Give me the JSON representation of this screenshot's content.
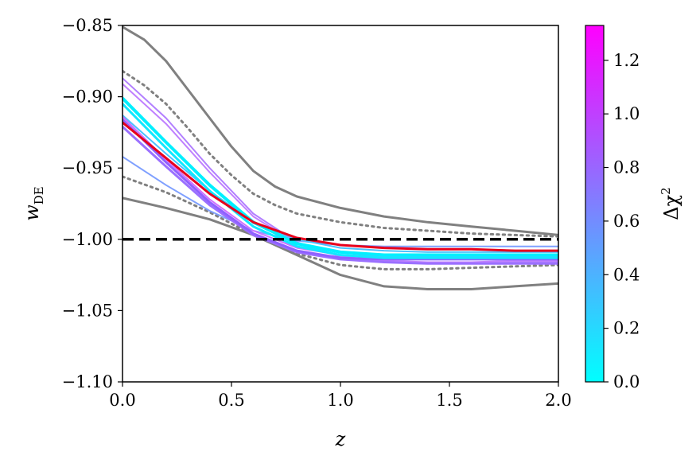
{
  "chart_data": {
    "type": "line",
    "xlabel": "z",
    "ylabel": {
      "main": "w",
      "sub": "DE"
    },
    "xlim": [
      0,
      2
    ],
    "ylim": [
      -1.1,
      -0.85
    ],
    "xticks": [
      0.0,
      0.5,
      1.0,
      1.5,
      2.0
    ],
    "yticks": [
      -0.85,
      -0.9,
      -0.95,
      -1.0,
      -1.05,
      -1.1
    ],
    "xtick_labels": [
      "0.0",
      "0.5",
      "1.0",
      "1.5",
      "2.0"
    ],
    "ytick_labels": [
      "−0.85",
      "−0.90",
      "−0.95",
      "−1.00",
      "−1.05",
      "−1.10"
    ],
    "grid": false,
    "colorbar": {
      "label_main": "Δχ",
      "label_sup": "2",
      "range": [
        0,
        1.33
      ],
      "ticks": [
        0.0,
        0.2,
        0.4,
        0.6,
        0.8,
        1.0,
        1.2
      ],
      "tick_labels": [
        "0.0",
        "0.2",
        "0.4",
        "0.6",
        "0.8",
        "1.0",
        "1.2"
      ],
      "colormap": [
        "#00ffff",
        "#ff00ff"
      ]
    },
    "series": [
      {
        "role": "band-outer-upper",
        "color": "#808080",
        "style": "solid",
        "width": 3,
        "x": [
          0,
          0.1,
          0.2,
          0.3,
          0.4,
          0.5,
          0.6,
          0.7,
          0.8,
          1.0,
          1.2,
          1.4,
          1.6,
          1.8,
          2.0
        ],
        "y": [
          -0.851,
          -0.86,
          -0.875,
          -0.895,
          -0.915,
          -0.935,
          -0.952,
          -0.963,
          -0.97,
          -0.978,
          -0.984,
          -0.988,
          -0.991,
          -0.994,
          -0.997
        ]
      },
      {
        "role": "band-outer-lower",
        "color": "#808080",
        "style": "solid",
        "width": 3,
        "x": [
          0,
          0.2,
          0.4,
          0.6,
          0.8,
          1.0,
          1.2,
          1.4,
          1.6,
          1.8,
          2.0
        ],
        "y": [
          -0.971,
          -0.978,
          -0.986,
          -0.997,
          -1.011,
          -1.025,
          -1.033,
          -1.035,
          -1.035,
          -1.033,
          -1.031
        ]
      },
      {
        "role": "band-inner-upper",
        "color": "#808080",
        "style": "dotted",
        "width": 3,
        "x": [
          0,
          0.1,
          0.2,
          0.3,
          0.4,
          0.5,
          0.6,
          0.7,
          0.8,
          1.0,
          1.2,
          1.4,
          1.6,
          1.8,
          2.0
        ],
        "y": [
          -0.882,
          -0.892,
          -0.905,
          -0.922,
          -0.94,
          -0.955,
          -0.968,
          -0.976,
          -0.982,
          -0.988,
          -0.992,
          -0.994,
          -0.996,
          -0.997,
          -0.998
        ]
      },
      {
        "role": "band-inner-lower",
        "color": "#808080",
        "style": "dotted",
        "width": 3,
        "x": [
          0,
          0.2,
          0.4,
          0.6,
          0.8,
          1.0,
          1.2,
          1.4,
          1.6,
          1.8,
          2.0
        ],
        "y": [
          -0.956,
          -0.967,
          -0.981,
          -0.997,
          -1.01,
          -1.018,
          -1.021,
          -1.021,
          -1.02,
          -1.019,
          -1.018
        ]
      },
      {
        "dchi2": 0.9,
        "color": "#b27fff",
        "style": "solid",
        "width": 2,
        "x": [
          0,
          0.2,
          0.4,
          0.6,
          0.8,
          1.0,
          1.2,
          1.4,
          1.6,
          1.8,
          2.0
        ],
        "y": [
          -0.887,
          -0.915,
          -0.95,
          -0.982,
          -1.002,
          -1.012,
          -1.016,
          -1.017,
          -1.017,
          -1.016,
          -1.016
        ]
      },
      {
        "dchi2": 1.0,
        "color": "#c080ff",
        "style": "solid",
        "width": 2,
        "x": [
          0,
          0.2,
          0.4,
          0.6,
          0.8,
          1.0,
          1.2,
          1.4,
          1.6,
          1.8,
          2.0
        ],
        "y": [
          -0.891,
          -0.919,
          -0.953,
          -0.984,
          -1.003,
          -1.012,
          -1.015,
          -1.016,
          -1.016,
          -1.015,
          -1.015
        ]
      },
      {
        "dchi2": 0.5,
        "color": "#7fa0ff",
        "style": "solid",
        "width": 2,
        "x": [
          0,
          0.2,
          0.4,
          0.6,
          0.8,
          1.0,
          1.2,
          1.4,
          1.6,
          1.8,
          2.0
        ],
        "y": [
          -0.942,
          -0.962,
          -0.98,
          -0.994,
          -1.001,
          -1.004,
          -1.005,
          -1.005,
          -1.005,
          -1.005,
          -1.005
        ]
      },
      {
        "dchi2": 0.3,
        "color": "#4cc0ff",
        "style": "solid",
        "width": 2,
        "x": [
          0,
          0.2,
          0.4,
          0.6,
          0.8,
          1.0,
          1.2,
          1.4,
          1.6,
          1.8,
          2.0
        ],
        "y": [
          -0.913,
          -0.94,
          -0.966,
          -0.988,
          -1.0,
          -1.006,
          -1.008,
          -1.009,
          -1.009,
          -1.009,
          -1.009
        ]
      },
      {
        "dchi2": 0.8,
        "color": "#9b70ff",
        "style": "solid",
        "width": 3,
        "x": [
          0,
          0.2,
          0.4,
          0.6,
          0.8,
          1.0,
          1.2,
          1.4,
          1.6,
          1.8,
          2.0
        ],
        "y": [
          -0.921,
          -0.949,
          -0.976,
          -0.997,
          -1.009,
          -1.014,
          -1.016,
          -1.017,
          -1.017,
          -1.017,
          -1.017
        ]
      },
      {
        "dchi2": 0.7,
        "color": "#8f60ff",
        "style": "solid",
        "width": 3,
        "x": [
          0,
          0.2,
          0.4,
          0.6,
          0.8,
          1.0,
          1.2,
          1.4,
          1.6,
          1.8,
          2.0
        ],
        "y": [
          -0.916,
          -0.946,
          -0.974,
          -0.996,
          -1.008,
          -1.013,
          -1.014,
          -1.014,
          -1.014,
          -1.014,
          -1.014
        ]
      },
      {
        "dchi2": 1.1,
        "color": "#d070ff",
        "style": "solid",
        "width": 2,
        "x": [
          0,
          0.2,
          0.4,
          0.6,
          0.8,
          1.0,
          1.2,
          1.4,
          1.6,
          1.8,
          2.0
        ],
        "y": [
          -0.914,
          -0.944,
          -0.972,
          -0.994,
          -1.006,
          -1.011,
          -1.012,
          -1.012,
          -1.012,
          -1.012,
          -1.012
        ]
      },
      {
        "dchi2": 0.0,
        "color": "#00f0ff",
        "style": "solid",
        "width": 4,
        "x": [
          0,
          0.2,
          0.4,
          0.6,
          0.8,
          1.0,
          1.2,
          1.4,
          1.6,
          1.8,
          2.0
        ],
        "y": [
          -0.901,
          -0.932,
          -0.962,
          -0.988,
          -1.003,
          -1.009,
          -1.011,
          -1.011,
          -1.011,
          -1.011,
          -1.011
        ]
      },
      {
        "dchi2": 0.05,
        "color": "#10e8ff",
        "style": "solid",
        "width": 3,
        "x": [
          0,
          0.2,
          0.4,
          0.6,
          0.8,
          1.0,
          1.2,
          1.4,
          1.6,
          1.8,
          2.0
        ],
        "y": [
          -0.905,
          -0.936,
          -0.966,
          -0.991,
          -1.005,
          -1.011,
          -1.013,
          -1.013,
          -1.013,
          -1.013,
          -1.013
        ]
      },
      {
        "role": "best-fit",
        "color": "#e8001c",
        "style": "solid",
        "width": 3,
        "x": [
          0,
          0.2,
          0.4,
          0.6,
          0.8,
          1.0,
          1.2,
          1.4,
          1.6,
          1.8,
          2.0
        ],
        "y": [
          -0.918,
          -0.943,
          -0.968,
          -0.988,
          -0.999,
          -1.004,
          -1.006,
          -1.007,
          -1.007,
          -1.008,
          -1.008
        ]
      },
      {
        "role": "reference-lambda",
        "color": "#000000",
        "style": "dashed",
        "width": 3.5,
        "x": [
          0,
          2.0
        ],
        "y": [
          -1.0,
          -1.0
        ]
      }
    ]
  }
}
